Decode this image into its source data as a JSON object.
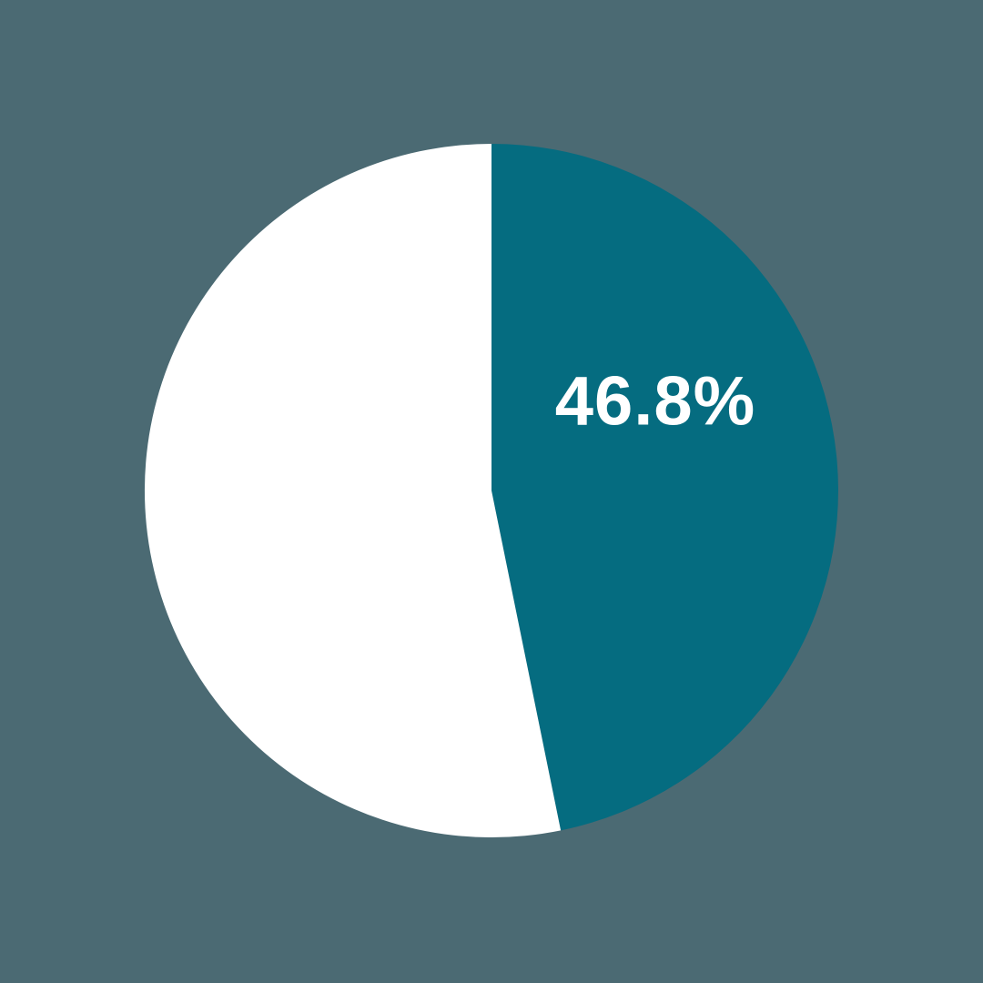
{
  "canvas": {
    "background": "#4B6A73"
  },
  "chart_data": {
    "type": "pie",
    "title": "",
    "legend": "none",
    "start_angle_deg": 0,
    "direction": "clockwise",
    "slices": [
      {
        "name": "highlighted-segment",
        "value": 46.8,
        "label": "46.8%",
        "color": "#056C80",
        "label_color": "#FFFFFF",
        "label_position": "inside"
      },
      {
        "name": "remainder-segment",
        "value": 53.2,
        "label": "",
        "color": "#FFFFFF",
        "label_color": "",
        "label_position": "none"
      }
    ]
  }
}
